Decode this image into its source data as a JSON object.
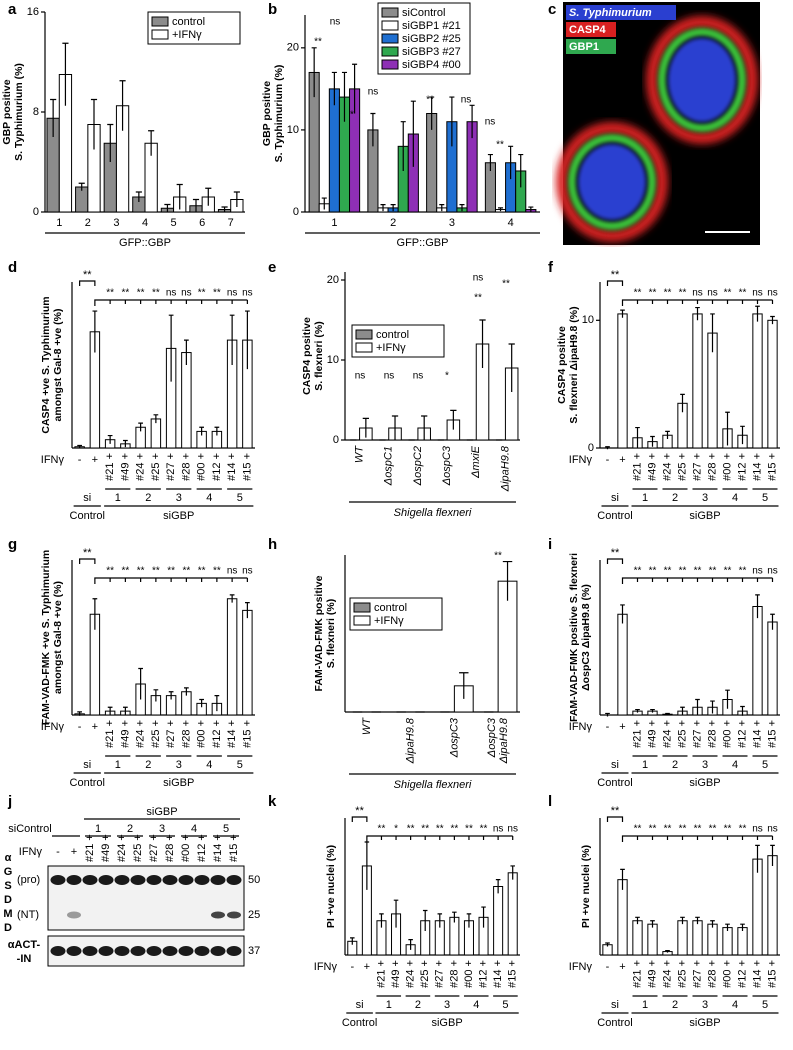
{
  "chart_data": [
    {
      "type": "bar",
      "panel": "a",
      "ylabel": [
        "GBP positive",
        "S. Typhimurium (%)"
      ],
      "xlabel": "GFP::GBP",
      "categories": [
        "1",
        "2",
        "3",
        "4",
        "5",
        "6",
        "7"
      ],
      "ylim": [
        0,
        16
      ],
      "yticks": [
        0,
        8,
        16
      ],
      "series": [
        {
          "name": "control",
          "color": "#8c8c8c",
          "values": [
            7.5,
            2,
            5.5,
            1.2,
            0.3,
            0.5,
            0.2
          ],
          "errors": [
            1.5,
            0.3,
            1.5,
            0.4,
            0.3,
            0.5,
            0.2
          ]
        },
        {
          "name": "+IFNγ",
          "color": "#ffffff",
          "values": [
            11,
            7,
            8.5,
            5.5,
            1.2,
            1.2,
            1
          ],
          "errors": [
            2.5,
            2,
            2,
            1,
            1,
            0.7,
            0.6
          ]
        }
      ]
    },
    {
      "type": "bar",
      "panel": "b",
      "ylabel": [
        "GBP positive",
        "S. Typhimurium (%)"
      ],
      "xlabel": "GFP::GBP",
      "categories": [
        "1",
        "2",
        "3",
        "4"
      ],
      "ylim": [
        0,
        24
      ],
      "yticks": [
        0,
        10,
        20
      ],
      "significance": [
        "ns",
        "**",
        "ns",
        "*",
        "**",
        "ns",
        "ns",
        "**"
      ],
      "series": [
        {
          "name": "siControl",
          "color": "#8c8c8c",
          "values": [
            17,
            10,
            12,
            6
          ],
          "errors": [
            3,
            2,
            2,
            1
          ]
        },
        {
          "name": "siGBP1 #21",
          "color": "#ffffff",
          "values": [
            1,
            0.5,
            0.5,
            0.3
          ],
          "errors": [
            0.7,
            0.4,
            0.4,
            0.2
          ]
        },
        {
          "name": "siGBP2 #25",
          "color": "#1f6fd1",
          "values": [
            15,
            0.5,
            11,
            6
          ],
          "errors": [
            2,
            0.4,
            3,
            2
          ]
        },
        {
          "name": "siGBP3 #27",
          "color": "#2fa84f",
          "values": [
            14,
            8,
            0.5,
            5
          ],
          "errors": [
            3,
            3,
            0.4,
            2
          ]
        },
        {
          "name": "siGBP4 #00",
          "color": "#8e2fb5",
          "values": [
            15,
            9.5,
            11,
            0.3
          ],
          "errors": [
            3,
            4,
            2,
            0.3
          ]
        }
      ]
    },
    {
      "type": "bar",
      "panel": "d",
      "ylabel": [
        "CASP4 +ve S. Typhimurium",
        "amongst Gal-8 +ve (%)"
      ],
      "ylim": [
        0,
        40
      ],
      "ifn_label": "IFNγ",
      "si_label": "si",
      "control_label": "Control",
      "sigbp_label": "siGBP",
      "group_labels": [
        "1",
        "2",
        "3",
        "4",
        "5"
      ],
      "categories": [
        "-",
        "+",
        "#21 +",
        "#49 +",
        "#24 +",
        "#25 +",
        "#27 +",
        "#28 +",
        "#00 +",
        "#12 +",
        "#14 +",
        "#15 +"
      ],
      "color": "#ffffff",
      "values": [
        0.3,
        28,
        2,
        1,
        5,
        7,
        24,
        23,
        4,
        4,
        26,
        26
      ],
      "errors": [
        0.3,
        5,
        1,
        0.8,
        1,
        1,
        8,
        3,
        1,
        1,
        6,
        7
      ],
      "significance": [
        "**",
        "**",
        "**",
        "**",
        "**",
        "ns",
        "ns",
        "**",
        "**",
        "ns",
        "ns"
      ]
    },
    {
      "type": "bar",
      "panel": "e",
      "ylabel": [
        "CASP4 positive",
        "S. flexneri (%)"
      ],
      "ylim": [
        0,
        21
      ],
      "yticks": [
        0,
        10,
        20
      ],
      "categories": [
        "WT",
        "ΔospC1",
        "ΔospC2",
        "ΔospC3",
        "ΔmxiE",
        "ΔipaH9.8"
      ],
      "group_label": "Shigella flexneri",
      "significance": [
        "ns",
        "ns",
        "ns",
        "*",
        "ns",
        "**",
        "**"
      ],
      "series": [
        {
          "name": "control",
          "color": "#8c8c8c",
          "values": [
            0,
            0,
            0,
            0,
            0,
            0
          ],
          "errors": [
            0,
            0,
            0,
            0,
            0,
            0
          ]
        },
        {
          "name": "+IFNγ",
          "color": "#ffffff",
          "values": [
            1.5,
            1.5,
            1.5,
            2.5,
            12,
            9
          ],
          "errors": [
            1.2,
            1.5,
            1.5,
            1.2,
            3,
            3
          ]
        }
      ]
    },
    {
      "type": "bar",
      "panel": "f",
      "ylabel": [
        "CASP4 positive",
        "S. flexneri ΔipaH9.8 (%)"
      ],
      "ylim": [
        0,
        13
      ],
      "yticks": [
        0,
        10
      ],
      "ifn_label": "IFNγ",
      "si_label": "si",
      "control_label": "Control",
      "sigbp_label": "siGBP",
      "group_labels": [
        "1",
        "2",
        "3",
        "4",
        "5"
      ],
      "categories": [
        "-",
        "+",
        "#21 +",
        "#49 +",
        "#24 +",
        "#25 +",
        "#27 +",
        "#28 +",
        "#00 +",
        "#12 +",
        "#14 +",
        "#15 +"
      ],
      "color": "#ffffff",
      "values": [
        0,
        10.5,
        0.8,
        0.5,
        1,
        3.5,
        10.5,
        9,
        1.5,
        1,
        10.5,
        10
      ],
      "errors": [
        0.1,
        0.3,
        0.8,
        0.4,
        0.3,
        0.7,
        0.5,
        1.5,
        1.3,
        0.7,
        0.6,
        0.3
      ],
      "significance": [
        "**",
        "**",
        "**",
        "**",
        "**",
        "ns",
        "ns",
        "**",
        "**",
        "ns",
        "ns"
      ]
    },
    {
      "type": "bar",
      "panel": "g",
      "ylabel": [
        "FAM-VAD-FMK +ve S. Typhimurium",
        "amongst Gal-8 +ve (%)"
      ],
      "ylim": [
        0,
        40
      ],
      "ifn_label": "IFNγ",
      "si_label": "si",
      "control_label": "Control",
      "sigbp_label": "siGBP",
      "group_labels": [
        "1",
        "2",
        "3",
        "4",
        "5"
      ],
      "categories": [
        "-",
        "+",
        "#21 +",
        "#49 +",
        "#24 +",
        "#25 +",
        "#27 +",
        "#28 +",
        "#00 +",
        "#12 +",
        "#14 +",
        "#15 +"
      ],
      "color": "#ffffff",
      "values": [
        0.3,
        26,
        1,
        1,
        8,
        5,
        5,
        6,
        3,
        3,
        30,
        27
      ],
      "errors": [
        0.5,
        4,
        1,
        1,
        4,
        1.5,
        1,
        1,
        1,
        2,
        1,
        2
      ],
      "significance": [
        "**",
        "**",
        "**",
        "**",
        "**",
        "**",
        "**",
        "**",
        "**",
        "ns",
        "ns"
      ]
    },
    {
      "type": "bar",
      "panel": "h",
      "ylabel": [
        "FAM-VAD-FMK positive",
        "S. flexneri (%)"
      ],
      "ylim": [
        0,
        12
      ],
      "categories": [
        "WT",
        "ΔipaH9.8",
        "ΔospC3",
        [
          "ΔospC3",
          "ΔipaH9.8"
        ]
      ],
      "group_label": "Shigella flexneri",
      "significance": [
        "**"
      ],
      "series": [
        {
          "name": "control",
          "color": "#8c8c8c",
          "values": [
            0,
            0,
            0,
            0
          ],
          "errors": [
            0,
            0,
            0,
            0
          ]
        },
        {
          "name": "+IFNγ",
          "color": "#ffffff",
          "values": [
            0,
            0,
            2,
            10
          ],
          "errors": [
            0,
            0,
            1,
            1.5
          ]
        }
      ]
    },
    {
      "type": "bar",
      "panel": "i",
      "ylabel": [
        "FAM-VAD-FMK positive S. flexneri",
        "ΔospC3 ΔipaH9.8 (%)"
      ],
      "ylim": [
        0,
        20
      ],
      "ifn_label": "IFNγ",
      "si_label": "si",
      "control_label": "Control",
      "sigbp_label": "siGBP",
      "group_labels": [
        "1",
        "2",
        "3",
        "4",
        "5"
      ],
      "categories": [
        "-",
        "+",
        "#21 +",
        "#49 +",
        "#24 +",
        "#25 +",
        "#27 +",
        "#28 +",
        "#00 +",
        "#12 +",
        "#14 +",
        "#15 +"
      ],
      "color": "#ffffff",
      "values": [
        0,
        13,
        0.5,
        0.5,
        0.1,
        0.5,
        1,
        1,
        2,
        0.5,
        14,
        12
      ],
      "errors": [
        0.2,
        1.2,
        0.2,
        0.2,
        0.1,
        0.5,
        1,
        0.8,
        1.2,
        0.6,
        1.5,
        1
      ],
      "significance": [
        "**",
        "**",
        "**",
        "**",
        "**",
        "**",
        "**",
        "**",
        "**",
        "ns",
        "ns"
      ]
    },
    {
      "type": "bar",
      "panel": "k",
      "ylabel": [
        "PI +ve nuclei (%)"
      ],
      "ylim": [
        0,
        40
      ],
      "ifn_label": "IFNγ",
      "si_label": "si",
      "control_label": "Control",
      "sigbp_label": "siGBP",
      "group_labels": [
        "1",
        "2",
        "3",
        "4",
        "5"
      ],
      "categories": [
        "-",
        "+",
        "#21 +",
        "#49 +",
        "#24 +",
        "#25 +",
        "#27 +",
        "#28 +",
        "#00 +",
        "#12 +",
        "#14 +",
        "#15 +"
      ],
      "color": "#ffffff",
      "values": [
        4,
        26,
        10,
        12,
        3,
        10,
        10,
        11,
        10,
        11,
        20,
        24
      ],
      "errors": [
        1,
        7,
        2,
        4,
        1.5,
        3,
        2,
        1.5,
        2,
        3,
        2,
        2
      ],
      "significance": [
        "**",
        "**",
        "*",
        "**",
        "**",
        "**",
        "**",
        "**",
        "**",
        "ns",
        "ns"
      ]
    },
    {
      "type": "bar",
      "panel": "l",
      "ylabel": [
        "PI +ve nuclei (%)"
      ],
      "ylim": [
        0,
        40
      ],
      "ifn_label": "IFNγ",
      "si_label": "si",
      "control_label": "Control",
      "sigbp_label": "siGBP",
      "group_labels": [
        "1",
        "2",
        "3",
        "4",
        "5"
      ],
      "categories": [
        "-",
        "+",
        "#21 +",
        "#49 +",
        "#24 +",
        "#25 +",
        "#27 +",
        "#28 +",
        "#00 +",
        "#12 +",
        "#14 +",
        "#15 +"
      ],
      "color": "#ffffff",
      "values": [
        3,
        22,
        10,
        9,
        1,
        10,
        10,
        9,
        8,
        8,
        28,
        29
      ],
      "errors": [
        0.5,
        3,
        1,
        1,
        0.3,
        1,
        1,
        1,
        1,
        1,
        4,
        3
      ],
      "significance": [
        "**",
        "**",
        "**",
        "**",
        "**",
        "**",
        "**",
        "**",
        "**",
        "ns",
        "ns"
      ]
    }
  ],
  "image_panel": {
    "panel": "c",
    "legend": [
      "S. Typhimurium",
      "CASP4",
      "GBP1"
    ]
  },
  "blot_panel": {
    "panel": "j",
    "control_label": "siControl",
    "sigbp_label": "siGBP",
    "group_labels": [
      "1",
      "2",
      "3",
      "4",
      "5"
    ],
    "ifn_label": "IFNγ",
    "lanes": [
      "-",
      "+",
      "#21 +",
      "#49 +",
      "#24 +",
      "#25 +",
      "#27 +",
      "#28 +",
      "#00 +",
      "#12 +",
      "#14 +",
      "#15 +"
    ],
    "antibody_letters": [
      "α",
      "G",
      "S",
      "D",
      "M",
      "D"
    ],
    "band_labels": [
      "(pro)",
      "(NT)"
    ],
    "loading_label": [
      "αACT-",
      "-IN"
    ],
    "markers": [
      50,
      25,
      37
    ]
  }
}
